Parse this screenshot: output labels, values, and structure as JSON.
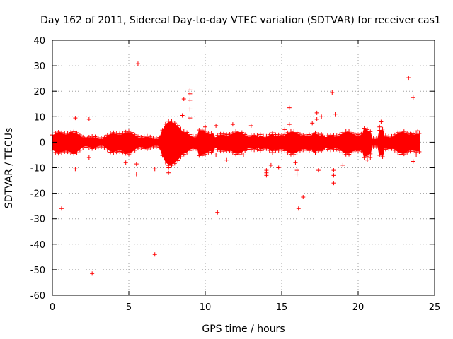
{
  "chart_data": {
    "type": "scatter",
    "title": "Day 162 of 2011, Sidereal Day-to-day VTEC variation (SDTVAR) for receiver cas1",
    "xlabel": "GPS time / hours",
    "ylabel": "SDTVAR / TECUs",
    "xlim": [
      0,
      25
    ],
    "ylim": [
      -60,
      40
    ],
    "xticks": [
      "0",
      "5",
      "10",
      "15",
      "20",
      "25"
    ],
    "yticks": [
      "40",
      "30",
      "20",
      "10",
      "0",
      "-10",
      "-20",
      "-30",
      "-40",
      "-50",
      "-60"
    ],
    "grid": true,
    "marker": "+",
    "color": "#ff0000",
    "series": [
      {
        "name": "SDTVAR",
        "points": [
          [
            0.6,
            -26
          ],
          [
            1.5,
            9.5
          ],
          [
            1.5,
            -10.5
          ],
          [
            2.4,
            9
          ],
          [
            2.4,
            -6
          ],
          [
            2.6,
            -51.5
          ],
          [
            4.8,
            -8
          ],
          [
            5.6,
            30.8
          ],
          [
            5.5,
            -12.5
          ],
          [
            5.5,
            -8.5
          ],
          [
            6.7,
            -44
          ],
          [
            6.7,
            -10.5
          ],
          [
            7.6,
            -10
          ],
          [
            7.6,
            -12
          ],
          [
            7.6,
            -8
          ],
          [
            8.5,
            10.5
          ],
          [
            8.6,
            17
          ],
          [
            9.0,
            20.5
          ],
          [
            9.0,
            19
          ],
          [
            9.0,
            16.5
          ],
          [
            9.0,
            13
          ],
          [
            9.0,
            9.5
          ],
          [
            10.0,
            6
          ],
          [
            10.8,
            -27.5
          ],
          [
            10.7,
            6.5
          ],
          [
            10.7,
            -5
          ],
          [
            11.4,
            -7
          ],
          [
            11.8,
            7
          ],
          [
            12.5,
            -5
          ],
          [
            13.0,
            6.5
          ],
          [
            14.0,
            -11
          ],
          [
            14.0,
            -12
          ],
          [
            14.0,
            -13
          ],
          [
            14.3,
            -9
          ],
          [
            14.8,
            -10
          ],
          [
            15.2,
            5
          ],
          [
            15.5,
            13.5
          ],
          [
            15.5,
            7
          ],
          [
            15.9,
            -8
          ],
          [
            16.0,
            -11
          ],
          [
            16.0,
            -12.5
          ],
          [
            16.1,
            -26
          ],
          [
            16.4,
            -21.5
          ],
          [
            17.0,
            7.5
          ],
          [
            17.3,
            11.5
          ],
          [
            17.3,
            9
          ],
          [
            17.4,
            -11
          ],
          [
            17.6,
            10
          ],
          [
            18.3,
            19.5
          ],
          [
            18.4,
            -16
          ],
          [
            18.4,
            -13
          ],
          [
            18.4,
            -11
          ],
          [
            18.5,
            11
          ],
          [
            19.0,
            -9
          ],
          [
            20.6,
            -7
          ],
          [
            20.8,
            -6
          ],
          [
            21.4,
            6
          ],
          [
            21.5,
            8
          ],
          [
            23.3,
            25.3
          ],
          [
            23.6,
            17.5
          ],
          [
            23.5,
            3
          ],
          [
            23.6,
            -7.5
          ],
          [
            23.8,
            -5
          ],
          [
            23.3,
            -3
          ],
          [
            23.9,
            4.5
          ]
        ]
      }
    ]
  }
}
